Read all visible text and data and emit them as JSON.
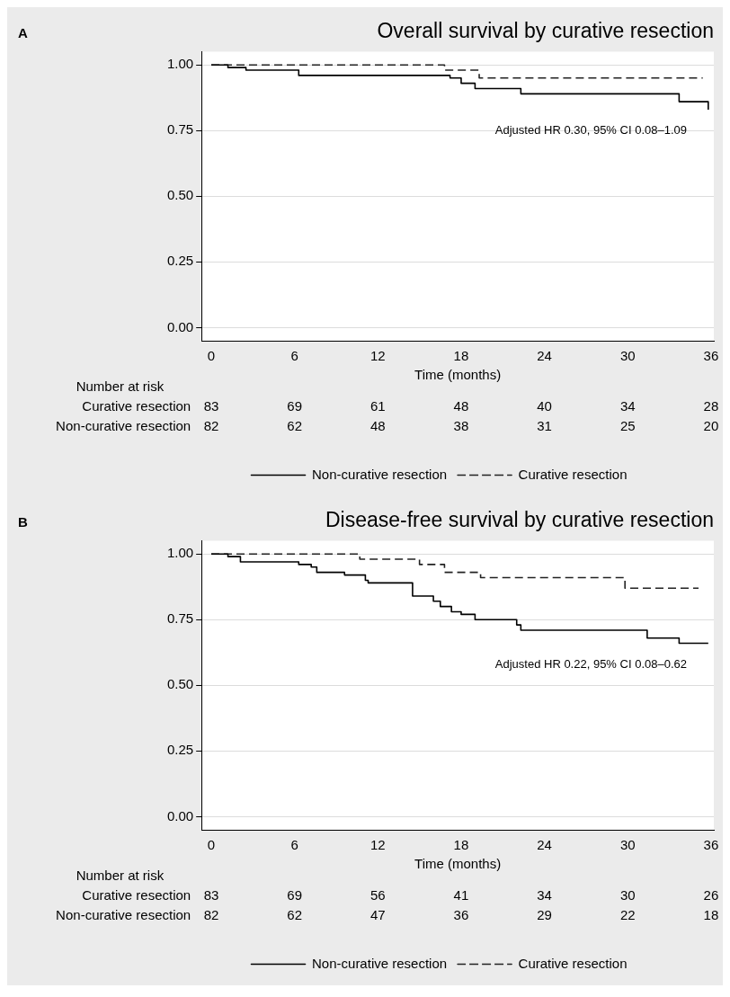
{
  "chart_data": [
    {
      "type": "step",
      "title": "Overall survival by curative resection",
      "xlabel": "Time (months)",
      "xlim": [
        -0.7,
        36.2
      ],
      "ylim": [
        -0.05,
        1.05
      ],
      "xticks": [
        0,
        6,
        12,
        18,
        24,
        30,
        36
      ],
      "yticks": [
        {
          "value": 0,
          "label": "0.00"
        },
        {
          "value": 0.25,
          "label": "0.25"
        },
        {
          "value": 0.5,
          "label": "0.50"
        },
        {
          "value": 0.75,
          "label": "0.75"
        },
        {
          "value": 1,
          "label": "1.00"
        }
      ],
      "grid": "y",
      "legend": "bottom",
      "annotations": [
        "A",
        "Adjusted HR 0.30, 95% CI 0.08–1.09",
        "Number at risk",
        "Curative resection 83 69 61 48 40 34 28",
        "Non-curative resection 82 62 48 38 31 25 20"
      ],
      "series": [
        {
          "name": "Non-curative resection",
          "color": "#000000",
          "line_style": "solid",
          "x": [
            0,
            1.2,
            2.5,
            6.3,
            17.2,
            18.0,
            19.0,
            22.3,
            33.7,
            35.8
          ],
          "values": [
            1,
            0.99,
            0.98,
            0.96,
            0.95,
            0.93,
            0.91,
            0.89,
            0.86,
            0.83
          ]
        },
        {
          "name": "Curative resection",
          "color": "#222222",
          "line_style": "dashed",
          "x": [
            0,
            16.8,
            19.3,
            35.4
          ],
          "values": [
            1,
            0.98,
            0.95,
            0.95
          ]
        }
      ]
    },
    {
      "type": "step",
      "title": "Disease-free survival by curative resection",
      "xlabel": "Time (months)",
      "xlim": [
        -0.7,
        36.2
      ],
      "ylim": [
        -0.05,
        1.05
      ],
      "xticks": [
        0,
        6,
        12,
        18,
        24,
        30,
        36
      ],
      "yticks": [
        {
          "value": 0,
          "label": "0.00"
        },
        {
          "value": 0.25,
          "label": "0.25"
        },
        {
          "value": 0.5,
          "label": "0.50"
        },
        {
          "value": 0.75,
          "label": "0.75"
        },
        {
          "value": 1,
          "label": "1.00"
        }
      ],
      "grid": "y",
      "legend": "bottom",
      "annotations": [
        "B",
        "Adjusted HR 0.22, 95% CI 0.08–0.62",
        "Number at risk",
        "Curative resection 83 69 56 41 34 30 26",
        "Non-curative resection 82 62 47 36 29 22 18"
      ],
      "series": [
        {
          "name": "Non-curative resection",
          "color": "#000000",
          "line_style": "solid",
          "x": [
            0,
            1.2,
            2.1,
            6.3,
            7.2,
            7.6,
            9.6,
            11.1,
            11.3,
            14.5,
            16.0,
            16.5,
            17.3,
            18.0,
            19.0,
            22.0,
            22.3,
            31.4,
            33.7,
            35.8
          ],
          "values": [
            1,
            0.99,
            0.97,
            0.96,
            0.95,
            0.93,
            0.92,
            0.9,
            0.89,
            0.84,
            0.82,
            0.8,
            0.78,
            0.77,
            0.75,
            0.73,
            0.71,
            0.68,
            0.66,
            0.66
          ]
        },
        {
          "name": "Curative resection",
          "color": "#222222",
          "line_style": "dashed",
          "x": [
            0,
            10.7,
            15.0,
            16.8,
            19.4,
            29.8,
            35.1
          ],
          "values": [
            1,
            0.98,
            0.96,
            0.93,
            0.91,
            0.87,
            0.87
          ]
        }
      ]
    }
  ]
}
